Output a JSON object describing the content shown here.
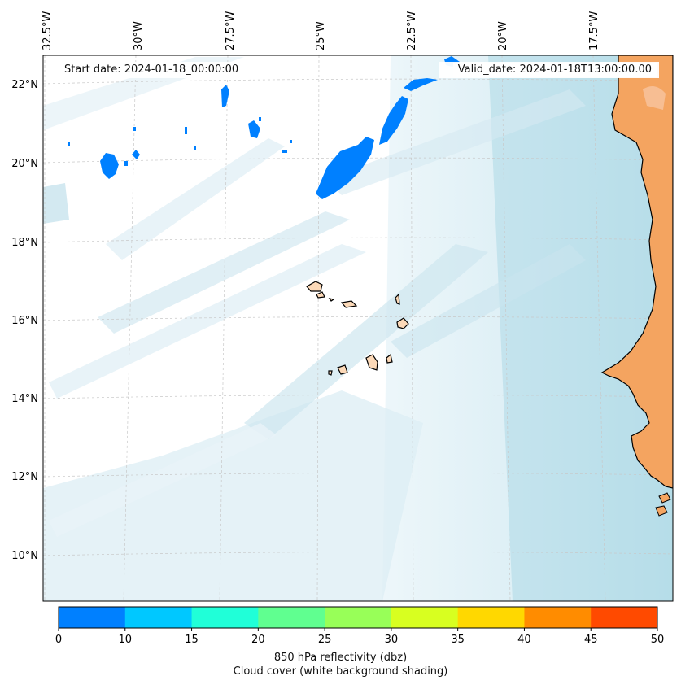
{
  "header": {
    "start": "Start date: 2024-01-18_00:00:00",
    "valid": "Valid_date: 2024-01-18T13:00:00.00"
  },
  "axes": {
    "lon_labels": [
      "32.5°W",
      "30°W",
      "27.5°W",
      "25°W",
      "22.5°W",
      "20°W",
      "17.5°W"
    ],
    "lat_labels": [
      "22°N",
      "20°N",
      "18°N",
      "16°N",
      "14°N",
      "12°N",
      "10°N"
    ]
  },
  "colorbar": {
    "ticks": [
      "0",
      "10",
      "15",
      "20",
      "25",
      "30",
      "35",
      "40",
      "45",
      "50"
    ],
    "colors": [
      "#0080ff",
      "#00c8ff",
      "#20ffd8",
      "#60ff90",
      "#98ff58",
      "#d8ff20",
      "#ffd800",
      "#ff8c00",
      "#ff4a00"
    ],
    "label": "850 hPa reflectivity (dbz)",
    "sublabel": "Cloud cover (white background shading)"
  },
  "colors": {
    "ocean_cloud": "#add8e6",
    "land": "#f4a460",
    "reflectivity_low": "#0080ff"
  }
}
